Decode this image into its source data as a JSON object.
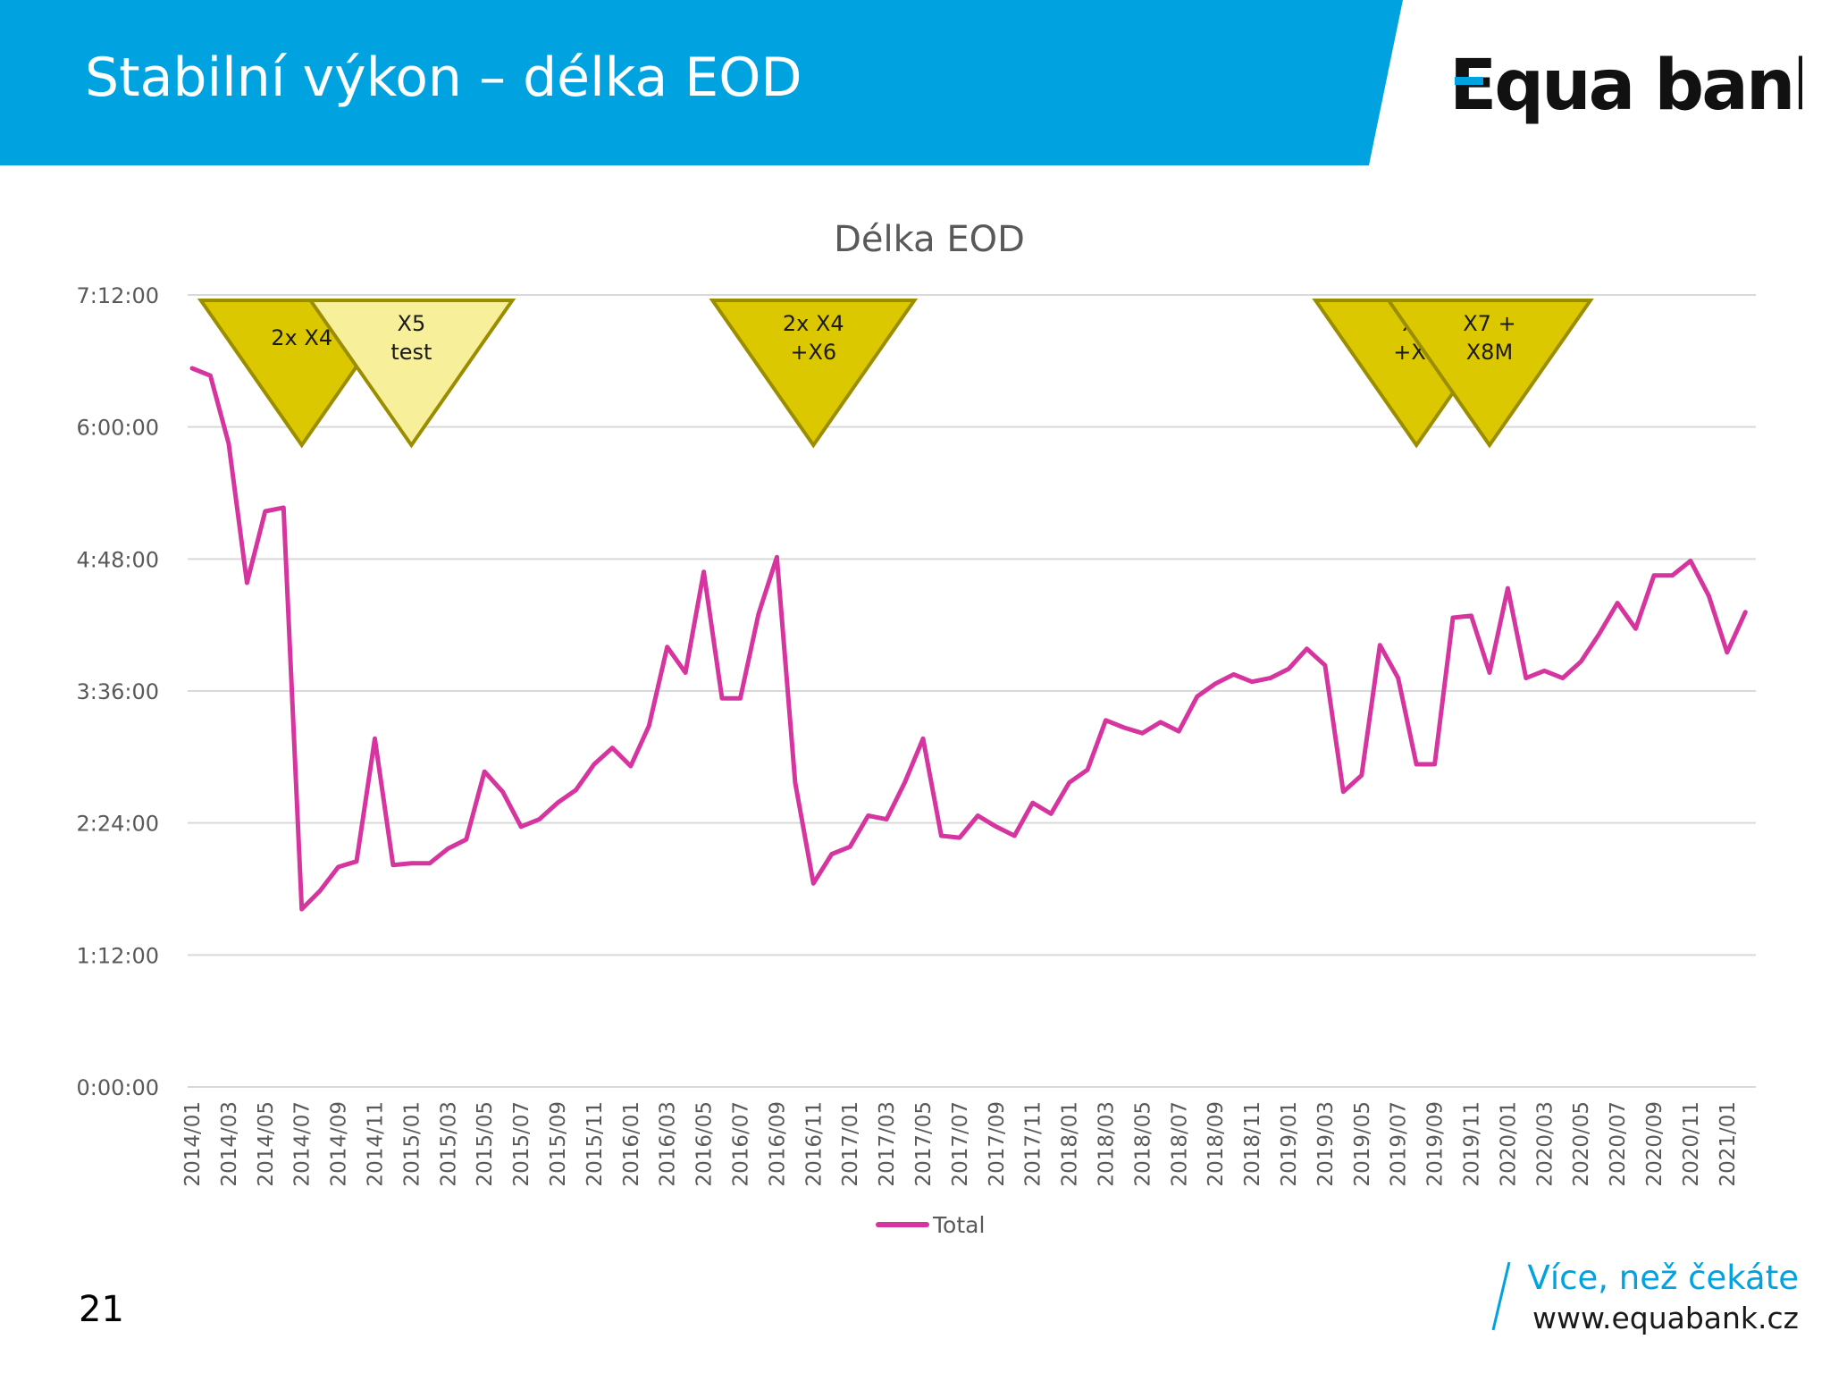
{
  "header": {
    "title": "Stabilní výkon – délka EOD"
  },
  "logo": {
    "text": "Equa bank",
    "accent_color": "#00a3e0"
  },
  "colors": {
    "header_band": "#00a3e0",
    "series": "#d6349f",
    "gridline": "#d9d9d9",
    "triangle_dark": "#dcc800",
    "triangle_light": "#f7ef9a",
    "triangle_stroke": "#9b8d00",
    "footer_accent": "#00a3e0"
  },
  "footer": {
    "page_number": "21",
    "slogan": "Více, než čekáte",
    "url": "www.equabank.cz"
  },
  "chart_data": {
    "type": "line",
    "title": "Délka EOD",
    "xlabel": "",
    "ylabel": "",
    "y_unit": "minutes",
    "ylim": [
      0,
      432
    ],
    "y_ticks": [
      0,
      72,
      144,
      216,
      288,
      360,
      432
    ],
    "y_tick_labels": [
      "0:00:00",
      "1:12:00",
      "2:24:00",
      "3:36:00",
      "4:48:00",
      "6:00:00",
      "7:12:00"
    ],
    "grid": true,
    "legend_position": "bottom",
    "categories": [
      "2014/01",
      "2014/02",
      "2014/03",
      "2014/04",
      "2014/05",
      "2014/06",
      "2014/07",
      "2014/08",
      "2014/09",
      "2014/10",
      "2014/11",
      "2014/12",
      "2015/01",
      "2015/02",
      "2015/03",
      "2015/04",
      "2015/05",
      "2015/06",
      "2015/07",
      "2015/08",
      "2015/09",
      "2015/10",
      "2015/11",
      "2015/12",
      "2016/01",
      "2016/02",
      "2016/03",
      "2016/04",
      "2016/05",
      "2016/06",
      "2016/07",
      "2016/08",
      "2016/09",
      "2016/10",
      "2016/11",
      "2016/12",
      "2017/01",
      "2017/02",
      "2017/03",
      "2017/04",
      "2017/05",
      "2017/06",
      "2017/07",
      "2017/08",
      "2017/09",
      "2017/10",
      "2017/11",
      "2017/12",
      "2018/01",
      "2018/02",
      "2018/03",
      "2018/04",
      "2018/05",
      "2018/06",
      "2018/07",
      "2018/08",
      "2018/09",
      "2018/10",
      "2018/11",
      "2018/12",
      "2019/01",
      "2019/02",
      "2019/03",
      "2019/04",
      "2019/05",
      "2019/06",
      "2019/07",
      "2019/08",
      "2019/09",
      "2019/10",
      "2019/11",
      "2019/12",
      "2020/01",
      "2020/02",
      "2020/03",
      "2020/04",
      "2020/05",
      "2020/06",
      "2020/07",
      "2020/08",
      "2020/09",
      "2020/10",
      "2020/11",
      "2020/12",
      "2021/01",
      "2021/02"
    ],
    "x_tick_labels": [
      "2014/01",
      "2014/03",
      "2014/05",
      "2014/07",
      "2014/09",
      "2014/11",
      "2015/01",
      "2015/03",
      "2015/05",
      "2015/07",
      "2015/09",
      "2015/11",
      "2016/01",
      "2016/03",
      "2016/05",
      "2016/07",
      "2016/09",
      "2016/11",
      "2017/01",
      "2017/03",
      "2017/05",
      "2017/07",
      "2017/09",
      "2017/11",
      "2018/01",
      "2018/03",
      "2018/05",
      "2018/07",
      "2018/09",
      "2018/11",
      "2019/01",
      "2019/03",
      "2019/05",
      "2019/07",
      "2019/09",
      "2019/11",
      "2020/01",
      "2020/03",
      "2020/05",
      "2020/07",
      "2020/09",
      "2020/11",
      "2021/01"
    ],
    "series": [
      {
        "name": "Total",
        "values": [
          392,
          388,
          351,
          275,
          314,
          316,
          97,
          107,
          120,
          123,
          190,
          121,
          122,
          122,
          130,
          135,
          172,
          161,
          142,
          146,
          155,
          162,
          176,
          185,
          175,
          197,
          240,
          226,
          281,
          212,
          212,
          258,
          289,
          166,
          111,
          127,
          131,
          148,
          146,
          166,
          190,
          137,
          136,
          148,
          142,
          137,
          155,
          149,
          166,
          173,
          200,
          196,
          193,
          199,
          194,
          213,
          220,
          225,
          221,
          223,
          228,
          239,
          230,
          161,
          170,
          241,
          223,
          176,
          176,
          256,
          257,
          226,
          272,
          223,
          227,
          223,
          232,
          247,
          264,
          250,
          279,
          279,
          287,
          268,
          237,
          259
        ]
      }
    ],
    "annotations": [
      {
        "text": [
          "2x X4"
        ],
        "category": "2014/07",
        "style": "dark"
      },
      {
        "text": [
          "X5",
          "test"
        ],
        "category": "2015/01",
        "style": "light"
      },
      {
        "text": [
          "2x X4",
          "+X6"
        ],
        "category": "2016/11",
        "style": "dark"
      },
      {
        "text": [
          "X6",
          "+X7"
        ],
        "category": "2019/08",
        "style": "dark"
      },
      {
        "text": [
          "X7 +",
          "X8M"
        ],
        "category": "2019/12",
        "style": "dark"
      }
    ]
  }
}
